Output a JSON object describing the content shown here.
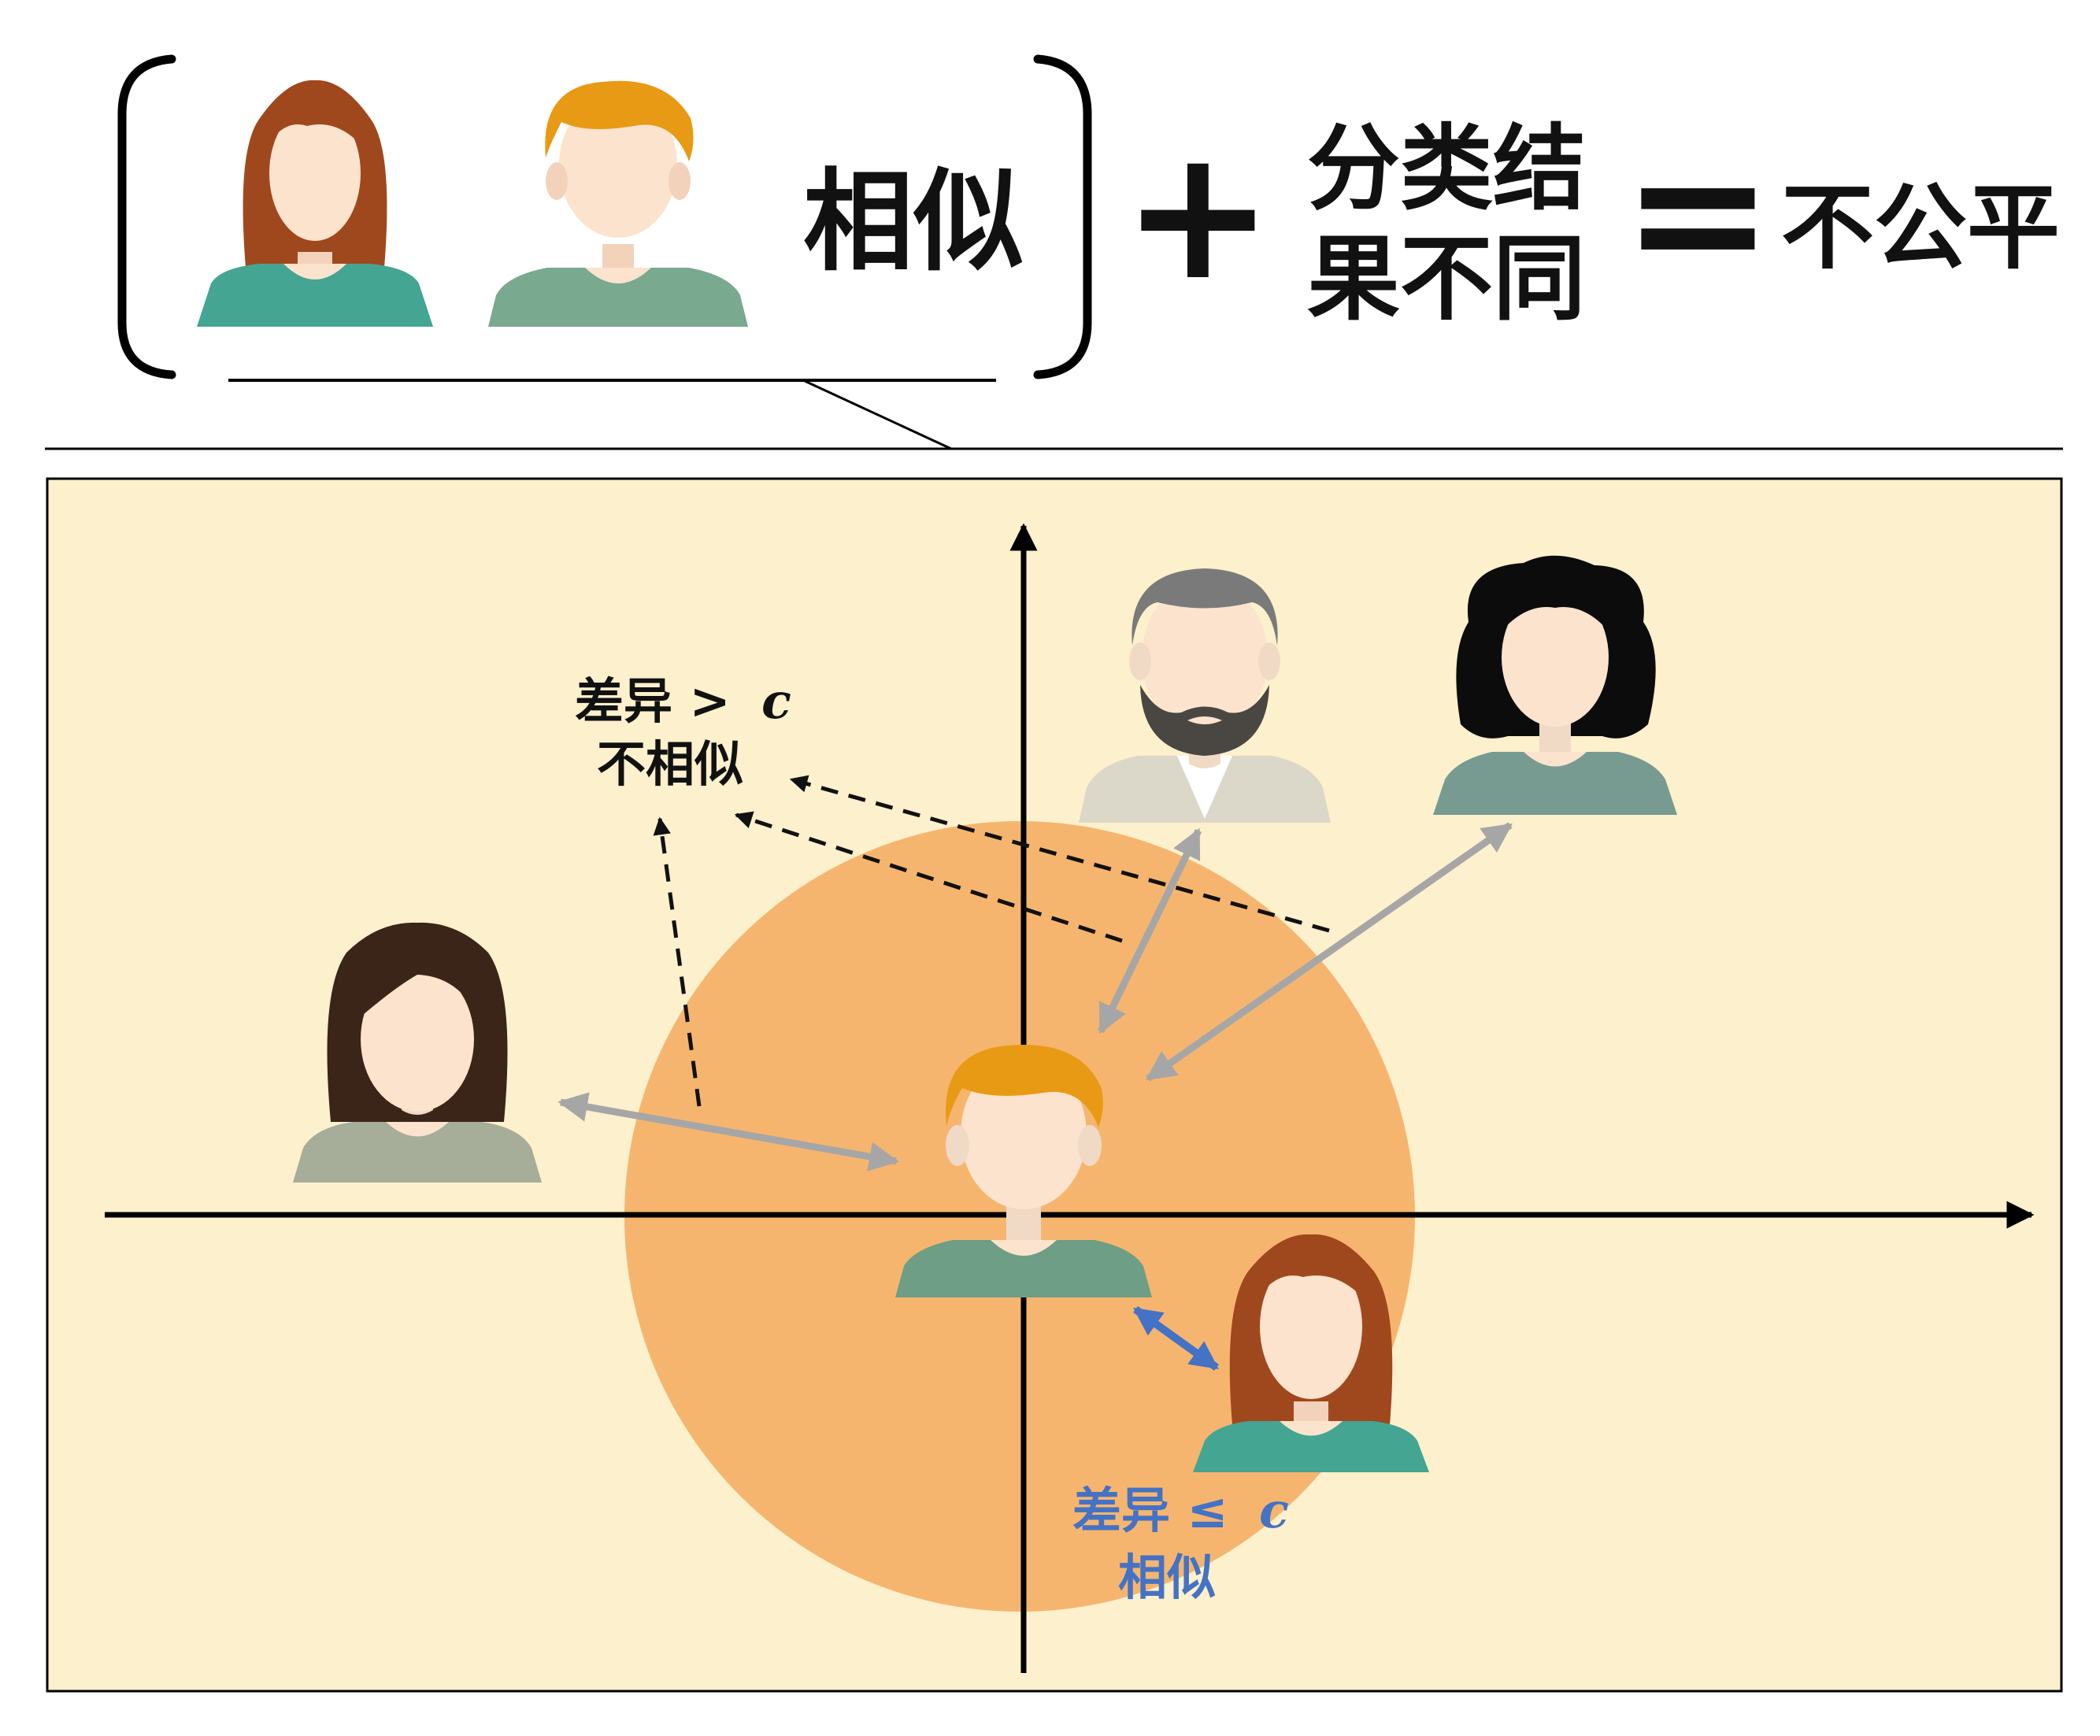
{
  "equation": {
    "similar_label": "相似",
    "plus": "+",
    "result_line1": "分类结",
    "result_line2": "果不同",
    "equals": "=",
    "conclusion": "不公平"
  },
  "diagram": {
    "dissimilar": {
      "diff_text": "差异 >",
      "threshold": "c",
      "verdict": "不相似"
    },
    "similar": {
      "diff_text": "差异 ≤",
      "threshold": "c",
      "verdict": "相似"
    }
  },
  "colors": {
    "panel_bg": "#fdf0cc",
    "circle_fill": "#f6b56e",
    "similar_blue": "#4472c4",
    "distance_arrow_gray": "#a6a6a6",
    "axis_black": "#000000",
    "skin": "#fbe3cd",
    "red_hair": "#a0481d",
    "blond_hair": "#e89a14",
    "teal_shirt": "#44a592",
    "green_shirt": "#79a98f"
  },
  "icons": [
    "woman-red-hair-avatar",
    "man-blond-hair-avatar",
    "man-grey-beard-avatar",
    "woman-black-hair-avatar",
    "woman-brown-hair-avatar",
    "arrow-up-icon",
    "arrow-right-icon"
  ]
}
